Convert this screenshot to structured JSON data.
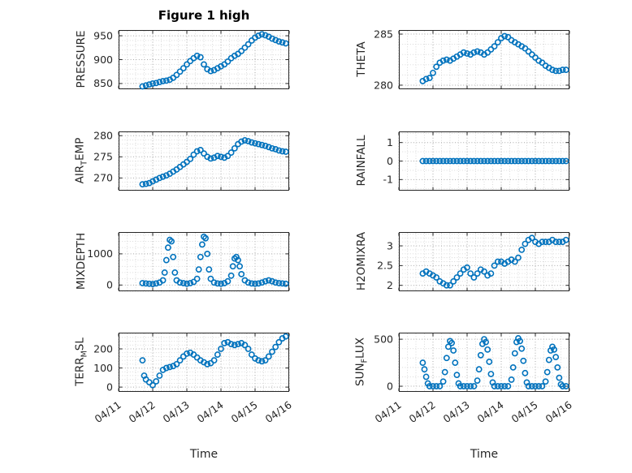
{
  "title": "Figure 1 high",
  "x_axis": {
    "label": "Time",
    "lim": [
      0,
      5
    ],
    "ticks": [
      0,
      1,
      2,
      3,
      4,
      5
    ],
    "tick_labels": [
      "04/11",
      "04/12",
      "04/13",
      "04/14",
      "04/15",
      "04/16"
    ],
    "minor_step": 0.25
  },
  "style": {
    "marker_color": "#0072BD",
    "axis_color": "#262626",
    "grid_color": "#a8a8a8",
    "minor_grid_color": "#d6d6d6",
    "background": "#ffffff"
  },
  "chart_data": [
    {
      "type": "scatter",
      "name": "pressure",
      "ylabel_text": "PRESSURE",
      "ylabel_parts": [
        {
          "t": "PRESSURE"
        }
      ],
      "yticks": [
        850,
        900,
        950
      ],
      "ylim": [
        838,
        962
      ],
      "y_minor_step": 10,
      "show_x_tick_labels": false,
      "x": [
        0.7,
        0.8,
        0.9,
        1.0,
        1.1,
        1.2,
        1.3,
        1.4,
        1.5,
        1.6,
        1.7,
        1.8,
        1.9,
        2.0,
        2.1,
        2.2,
        2.3,
        2.4,
        2.5,
        2.6,
        2.7,
        2.8,
        2.9,
        3.0,
        3.1,
        3.2,
        3.3,
        3.4,
        3.5,
        3.6,
        3.7,
        3.8,
        3.9,
        4.0,
        4.1,
        4.2,
        4.3,
        4.4,
        4.5,
        4.6,
        4.7,
        4.8,
        4.9
      ],
      "y": [
        844,
        846,
        848,
        850,
        851,
        853,
        855,
        856,
        858,
        862,
        868,
        875,
        882,
        890,
        897,
        903,
        908,
        905,
        890,
        880,
        876,
        878,
        882,
        886,
        890,
        896,
        903,
        908,
        912,
        918,
        925,
        932,
        940,
        946,
        950,
        953,
        951,
        948,
        944,
        941,
        938,
        936,
        934
      ]
    },
    {
      "type": "scatter",
      "name": "theta",
      "ylabel_text": "THETA",
      "ylabel_parts": [
        {
          "t": "THETA"
        }
      ],
      "yticks": [
        280,
        285
      ],
      "ylim": [
        279.6,
        285.4
      ],
      "y_minor_step": 1,
      "show_x_tick_labels": false,
      "x": [
        0.7,
        0.8,
        0.9,
        1.0,
        1.1,
        1.2,
        1.3,
        1.4,
        1.5,
        1.6,
        1.7,
        1.8,
        1.9,
        2.0,
        2.1,
        2.2,
        2.3,
        2.4,
        2.5,
        2.6,
        2.7,
        2.8,
        2.9,
        3.0,
        3.1,
        3.2,
        3.3,
        3.4,
        3.5,
        3.6,
        3.7,
        3.8,
        3.9,
        4.0,
        4.1,
        4.2,
        4.3,
        4.4,
        4.5,
        4.6,
        4.7,
        4.8,
        4.9
      ],
      "y": [
        280.4,
        280.6,
        280.7,
        281.2,
        281.8,
        282.2,
        282.4,
        282.5,
        282.4,
        282.6,
        282.8,
        283.0,
        283.2,
        283.1,
        283.0,
        283.2,
        283.3,
        283.2,
        283.0,
        283.2,
        283.5,
        283.8,
        284.2,
        284.6,
        284.8,
        284.7,
        284.4,
        284.2,
        284.0,
        283.8,
        283.6,
        283.3,
        283.0,
        282.7,
        282.4,
        282.2,
        281.9,
        281.7,
        281.5,
        281.4,
        281.4,
        281.5,
        281.5
      ]
    },
    {
      "type": "scatter",
      "name": "airtemp",
      "ylabel_text": "AIR_TEMP",
      "ylabel_parts": [
        {
          "t": "AIR"
        },
        {
          "t": "T",
          "sub": true
        },
        {
          "t": "EMP"
        }
      ],
      "yticks": [
        270,
        275,
        280
      ],
      "ylim": [
        267,
        281
      ],
      "y_minor_step": 1,
      "show_x_tick_labels": false,
      "x": [
        0.7,
        0.8,
        0.9,
        1.0,
        1.1,
        1.2,
        1.3,
        1.4,
        1.5,
        1.6,
        1.7,
        1.8,
        1.9,
        2.0,
        2.1,
        2.2,
        2.3,
        2.4,
        2.5,
        2.6,
        2.7,
        2.8,
        2.9,
        3.0,
        3.1,
        3.2,
        3.3,
        3.4,
        3.5,
        3.6,
        3.7,
        3.8,
        3.9,
        4.0,
        4.1,
        4.2,
        4.3,
        4.4,
        4.5,
        4.6,
        4.7,
        4.8,
        4.9
      ],
      "y": [
        268.5,
        268.6,
        268.8,
        269.2,
        269.6,
        270.0,
        270.3,
        270.6,
        271.0,
        271.5,
        272.0,
        272.6,
        273.2,
        273.8,
        274.5,
        275.5,
        276.3,
        276.6,
        275.8,
        275.0,
        274.6,
        274.8,
        275.2,
        275.0,
        274.8,
        275.2,
        276.0,
        277.0,
        278.0,
        278.6,
        278.9,
        278.7,
        278.4,
        278.2,
        278.0,
        277.8,
        277.6,
        277.3,
        277.0,
        276.8,
        276.5,
        276.3,
        276.2
      ]
    },
    {
      "type": "scatter",
      "name": "rainfall",
      "ylabel_text": "RAINFALL",
      "ylabel_parts": [
        {
          "t": "RAINFALL"
        }
      ],
      "yticks": [
        -1,
        0,
        1
      ],
      "ylim": [
        -1.6,
        1.6
      ],
      "y_minor_step": 0.5,
      "show_x_tick_labels": false,
      "x": [
        0.7,
        0.8,
        0.9,
        1.0,
        1.1,
        1.2,
        1.3,
        1.4,
        1.5,
        1.6,
        1.7,
        1.8,
        1.9,
        2.0,
        2.1,
        2.2,
        2.3,
        2.4,
        2.5,
        2.6,
        2.7,
        2.8,
        2.9,
        3.0,
        3.1,
        3.2,
        3.3,
        3.4,
        3.5,
        3.6,
        3.7,
        3.8,
        3.9,
        4.0,
        4.1,
        4.2,
        4.3,
        4.4,
        4.5,
        4.6,
        4.7,
        4.8,
        4.9
      ],
      "y": [
        0,
        0,
        0,
        0,
        0,
        0,
        0,
        0,
        0,
        0,
        0,
        0,
        0,
        0,
        0,
        0,
        0,
        0,
        0,
        0,
        0,
        0,
        0,
        0,
        0,
        0,
        0,
        0,
        0,
        0,
        0,
        0,
        0,
        0,
        0,
        0,
        0,
        0,
        0,
        0,
        0,
        0,
        0
      ]
    },
    {
      "type": "scatter",
      "name": "mixdepth",
      "ylabel_text": "MIXDEPTH",
      "ylabel_parts": [
        {
          "t": "MIXDEPTH"
        }
      ],
      "yticks": [
        0,
        1000
      ],
      "ylim": [
        -200,
        1700
      ],
      "y_minor_step": 200,
      "show_x_tick_labels": false,
      "x": [
        0.7,
        0.8,
        0.9,
        1.0,
        1.1,
        1.2,
        1.3,
        1.35,
        1.4,
        1.45,
        1.5,
        1.55,
        1.6,
        1.65,
        1.7,
        1.8,
        1.9,
        2.0,
        2.1,
        2.2,
        2.3,
        2.35,
        2.4,
        2.45,
        2.5,
        2.55,
        2.6,
        2.65,
        2.7,
        2.8,
        2.9,
        3.0,
        3.1,
        3.2,
        3.3,
        3.35,
        3.4,
        3.45,
        3.5,
        3.55,
        3.6,
        3.7,
        3.8,
        3.9,
        4.0,
        4.1,
        4.2,
        4.3,
        4.4,
        4.5,
        4.6,
        4.7,
        4.8,
        4.9
      ],
      "y": [
        60,
        50,
        40,
        30,
        50,
        80,
        150,
        400,
        800,
        1200,
        1450,
        1400,
        900,
        400,
        150,
        80,
        60,
        40,
        60,
        100,
        200,
        500,
        900,
        1300,
        1550,
        1500,
        1000,
        500,
        200,
        80,
        50,
        40,
        60,
        120,
        300,
        600,
        850,
        900,
        800,
        600,
        350,
        150,
        80,
        50,
        40,
        50,
        80,
        120,
        150,
        120,
        80,
        60,
        50,
        40
      ]
    },
    {
      "type": "scatter",
      "name": "h2omixra",
      "ylabel_text": "H2OMIXRA",
      "ylabel_parts": [
        {
          "t": "H2OMIXRA"
        }
      ],
      "yticks": [
        2,
        2.5,
        3
      ],
      "ylim": [
        1.85,
        3.35
      ],
      "y_minor_step": 0.1,
      "show_x_tick_labels": false,
      "x": [
        0.7,
        0.8,
        0.9,
        1.0,
        1.1,
        1.2,
        1.3,
        1.4,
        1.5,
        1.6,
        1.7,
        1.8,
        1.9,
        2.0,
        2.1,
        2.2,
        2.3,
        2.4,
        2.5,
        2.6,
        2.7,
        2.8,
        2.9,
        3.0,
        3.1,
        3.2,
        3.3,
        3.4,
        3.5,
        3.6,
        3.7,
        3.8,
        3.9,
        4.0,
        4.1,
        4.2,
        4.3,
        4.4,
        4.5,
        4.6,
        4.7,
        4.8,
        4.9
      ],
      "y": [
        2.3,
        2.35,
        2.3,
        2.25,
        2.2,
        2.1,
        2.05,
        2.0,
        2.0,
        2.1,
        2.2,
        2.3,
        2.4,
        2.45,
        2.3,
        2.2,
        2.3,
        2.4,
        2.35,
        2.25,
        2.3,
        2.5,
        2.6,
        2.6,
        2.55,
        2.6,
        2.65,
        2.6,
        2.7,
        2.9,
        3.05,
        3.15,
        3.2,
        3.1,
        3.05,
        3.1,
        3.1,
        3.1,
        3.15,
        3.1,
        3.1,
        3.1,
        3.15
      ]
    },
    {
      "type": "scatter",
      "name": "terrmsl",
      "ylabel_text": "TERR_MSL",
      "ylabel_parts": [
        {
          "t": "TERR"
        },
        {
          "t": "M",
          "sub": true
        },
        {
          "t": "SL"
        }
      ],
      "yticks": [
        0,
        100,
        200
      ],
      "ylim": [
        -25,
        285
      ],
      "y_minor_step": 20,
      "show_x_tick_labels": true,
      "x": [
        0.7,
        0.75,
        0.8,
        0.9,
        1.0,
        1.1,
        1.2,
        1.3,
        1.4,
        1.5,
        1.6,
        1.7,
        1.8,
        1.9,
        2.0,
        2.1,
        2.2,
        2.3,
        2.4,
        2.5,
        2.6,
        2.7,
        2.8,
        2.9,
        3.0,
        3.1,
        3.2,
        3.3,
        3.4,
        3.5,
        3.6,
        3.7,
        3.8,
        3.9,
        4.0,
        4.1,
        4.2,
        4.3,
        4.4,
        4.5,
        4.6,
        4.7,
        4.8,
        4.9
      ],
      "y": [
        140,
        60,
        40,
        25,
        10,
        30,
        60,
        90,
        100,
        105,
        110,
        120,
        140,
        160,
        175,
        180,
        170,
        155,
        140,
        130,
        120,
        125,
        140,
        170,
        200,
        230,
        235,
        225,
        220,
        225,
        230,
        220,
        200,
        170,
        150,
        140,
        135,
        140,
        160,
        185,
        210,
        235,
        255,
        265
      ]
    },
    {
      "type": "scatter",
      "name": "sunflux",
      "ylabel_text": "SUN_FLUX",
      "ylabel_parts": [
        {
          "t": "SUN"
        },
        {
          "t": "F",
          "sub": true
        },
        {
          "t": "LUX"
        }
      ],
      "yticks": [
        0,
        500
      ],
      "ylim": [
        -60,
        570
      ],
      "y_minor_step": 100,
      "show_x_tick_labels": true,
      "x": [
        0.7,
        0.75,
        0.8,
        0.85,
        0.9,
        1.0,
        1.1,
        1.2,
        1.3,
        1.35,
        1.4,
        1.45,
        1.5,
        1.55,
        1.6,
        1.65,
        1.7,
        1.75,
        1.8,
        1.9,
        2.0,
        2.1,
        2.2,
        2.3,
        2.35,
        2.4,
        2.45,
        2.5,
        2.55,
        2.6,
        2.65,
        2.7,
        2.75,
        2.8,
        2.9,
        3.0,
        3.1,
        3.2,
        3.3,
        3.35,
        3.4,
        3.45,
        3.5,
        3.55,
        3.6,
        3.65,
        3.7,
        3.75,
        3.8,
        3.9,
        4.0,
        4.1,
        4.2,
        4.3,
        4.35,
        4.4,
        4.45,
        4.5,
        4.55,
        4.6,
        4.65,
        4.7,
        4.75,
        4.8,
        4.9
      ],
      "y": [
        250,
        180,
        100,
        30,
        0,
        0,
        0,
        0,
        50,
        150,
        300,
        420,
        480,
        460,
        380,
        250,
        120,
        30,
        0,
        0,
        0,
        0,
        0,
        60,
        180,
        330,
        450,
        500,
        470,
        390,
        260,
        130,
        40,
        0,
        0,
        0,
        0,
        0,
        70,
        200,
        350,
        470,
        510,
        480,
        400,
        270,
        140,
        40,
        0,
        0,
        0,
        0,
        0,
        50,
        150,
        280,
        380,
        420,
        390,
        310,
        200,
        90,
        20,
        0,
        0
      ]
    }
  ]
}
